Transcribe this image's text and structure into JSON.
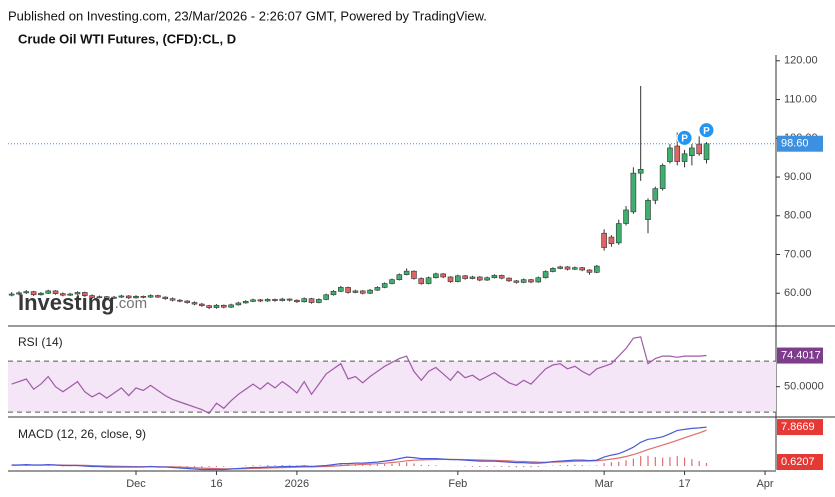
{
  "header": {
    "published": "Published on Investing.com, 23/Mar/2026 - 2:26:07 GMT, Powered by TradingView."
  },
  "watermark": [
    "Investing",
    ".com"
  ],
  "chart_data": [
    {
      "type": "candlestick",
      "title": "Crude Oil WTI Futures, (CFD):CL, D",
      "up_color": "#3fae6f",
      "down_color": "#e26363",
      "xlim": [
        -0.5,
        104.5
      ],
      "ylim": [
        51.8,
        121.5
      ],
      "yticks": [
        {
          "value": 60,
          "label": "60.00"
        },
        {
          "value": 70,
          "label": "70.00"
        },
        {
          "value": 80,
          "label": "80.00"
        },
        {
          "value": 90,
          "label": "90.00"
        },
        {
          "value": 100,
          "label": "100.00"
        },
        {
          "value": 110,
          "label": "110.00"
        },
        {
          "value": 120,
          "label": "120.00"
        }
      ],
      "price_label": "98.60",
      "price_label_color": "#3d8fe0",
      "events": [
        {
          "index": 92,
          "label": "P"
        },
        {
          "index": 95,
          "label": "P"
        }
      ],
      "ohlc": [
        [
          59.5,
          60.3,
          59.2,
          59.8
        ],
        [
          59.8,
          60.5,
          59.5,
          60.1
        ],
        [
          60.1,
          60.8,
          59.8,
          60.4
        ],
        [
          60.4,
          60.6,
          59.3,
          59.6
        ],
        [
          59.6,
          60.3,
          59.4,
          60.0
        ],
        [
          60.0,
          60.9,
          59.8,
          60.6
        ],
        [
          60.6,
          60.8,
          59.6,
          59.9
        ],
        [
          59.9,
          60.2,
          59.2,
          59.5
        ],
        [
          59.5,
          60.1,
          59.3,
          59.8
        ],
        [
          59.8,
          60.5,
          59.6,
          60.2
        ],
        [
          60.2,
          60.4,
          59.1,
          59.4
        ],
        [
          59.4,
          59.7,
          58.6,
          58.9
        ],
        [
          58.9,
          59.4,
          58.7,
          59.1
        ],
        [
          59.1,
          59.3,
          58.4,
          58.7
        ],
        [
          58.7,
          59.3,
          58.5,
          59.0
        ],
        [
          59.0,
          59.6,
          58.8,
          59.3
        ],
        [
          59.3,
          59.5,
          58.5,
          58.8
        ],
        [
          58.8,
          59.5,
          58.6,
          59.2
        ],
        [
          59.2,
          59.4,
          58.7,
          59.0
        ],
        [
          59.0,
          59.7,
          58.8,
          59.4
        ],
        [
          59.4,
          59.6,
          58.8,
          59.0
        ],
        [
          59.0,
          59.2,
          58.3,
          58.6
        ],
        [
          58.6,
          58.9,
          57.9,
          58.2
        ],
        [
          58.2,
          58.5,
          57.7,
          58.0
        ],
        [
          58.0,
          58.2,
          57.3,
          57.6
        ],
        [
          57.6,
          57.9,
          56.9,
          57.2
        ],
        [
          57.2,
          57.5,
          56.5,
          56.8
        ],
        [
          56.8,
          57.0,
          55.9,
          56.3
        ],
        [
          56.3,
          57.2,
          56.0,
          56.9
        ],
        [
          56.9,
          57.1,
          56.1,
          56.4
        ],
        [
          56.4,
          57.3,
          56.2,
          57.0
        ],
        [
          57.0,
          57.8,
          56.8,
          57.5
        ],
        [
          57.5,
          58.2,
          57.3,
          57.9
        ],
        [
          57.9,
          58.6,
          57.7,
          58.3
        ],
        [
          58.3,
          58.5,
          57.7,
          58.0
        ],
        [
          58.0,
          58.7,
          57.8,
          58.4
        ],
        [
          58.4,
          58.6,
          57.8,
          58.1
        ],
        [
          58.1,
          58.8,
          57.9,
          58.5
        ],
        [
          58.5,
          58.7,
          57.9,
          58.2
        ],
        [
          58.2,
          58.4,
          57.5,
          57.8
        ],
        [
          57.8,
          58.9,
          57.6,
          58.6
        ],
        [
          58.6,
          58.8,
          57.3,
          57.6
        ],
        [
          57.6,
          58.7,
          57.4,
          58.4
        ],
        [
          58.4,
          59.9,
          58.2,
          59.6
        ],
        [
          59.6,
          60.8,
          59.4,
          60.5
        ],
        [
          60.5,
          61.9,
          60.3,
          61.5
        ],
        [
          61.5,
          61.7,
          59.9,
          60.2
        ],
        [
          60.2,
          60.9,
          60.0,
          60.6
        ],
        [
          60.6,
          60.8,
          59.7,
          60.0
        ],
        [
          60.0,
          61.1,
          59.8,
          60.8
        ],
        [
          60.8,
          61.8,
          60.6,
          61.5
        ],
        [
          61.5,
          62.8,
          61.3,
          62.5
        ],
        [
          62.5,
          63.8,
          62.3,
          63.5
        ],
        [
          63.5,
          65.1,
          63.3,
          64.8
        ],
        [
          64.8,
          66.4,
          64.6,
          65.7
        ],
        [
          65.7,
          65.9,
          63.5,
          63.8
        ],
        [
          63.8,
          64.1,
          62.2,
          62.5
        ],
        [
          62.5,
          64.3,
          62.3,
          64.0
        ],
        [
          64.0,
          65.3,
          63.8,
          65.0
        ],
        [
          65.0,
          65.2,
          63.9,
          64.2
        ],
        [
          64.2,
          64.4,
          62.7,
          63.0
        ],
        [
          63.0,
          64.8,
          62.8,
          64.5
        ],
        [
          64.5,
          64.7,
          63.5,
          63.8
        ],
        [
          63.8,
          64.5,
          63.6,
          64.2
        ],
        [
          64.2,
          64.4,
          63.1,
          63.4
        ],
        [
          63.4,
          64.3,
          63.2,
          64.0
        ],
        [
          64.0,
          64.9,
          63.8,
          64.6
        ],
        [
          64.6,
          64.8,
          63.6,
          63.9
        ],
        [
          63.9,
          64.1,
          62.9,
          63.2
        ],
        [
          63.2,
          63.4,
          62.5,
          62.8
        ],
        [
          62.8,
          63.8,
          62.6,
          63.5
        ],
        [
          63.5,
          63.7,
          62.6,
          62.9
        ],
        [
          62.9,
          64.3,
          62.7,
          64.0
        ],
        [
          64.0,
          65.9,
          63.8,
          65.6
        ],
        [
          65.6,
          66.7,
          65.4,
          66.4
        ],
        [
          66.4,
          67.1,
          66.2,
          66.8
        ],
        [
          66.8,
          67.0,
          65.9,
          66.2
        ],
        [
          66.2,
          66.9,
          66.0,
          66.6
        ],
        [
          66.6,
          66.8,
          65.7,
          66.0
        ],
        [
          66.0,
          66.2,
          64.8,
          65.4
        ],
        [
          65.4,
          67.3,
          65.2,
          67.0
        ],
        [
          75.5,
          76.5,
          71.0,
          71.8
        ],
        [
          74.5,
          75.0,
          72.0,
          72.8
        ],
        [
          73.0,
          79.0,
          72.5,
          78.0
        ],
        [
          78.0,
          82.5,
          77.5,
          81.5
        ],
        [
          81.0,
          92.5,
          80.5,
          91.0
        ],
        [
          91.0,
          113.5,
          89.0,
          92.0
        ],
        [
          79.0,
          84.5,
          75.5,
          84.0
        ],
        [
          84.0,
          87.5,
          83.0,
          87.0
        ],
        [
          87.0,
          93.5,
          86.5,
          93.0
        ],
        [
          94.0,
          98.5,
          93.5,
          97.5
        ],
        [
          98.0,
          101.5,
          93.0,
          94.0
        ],
        [
          94.0,
          97.0,
          92.5,
          96.0
        ],
        [
          95.5,
          98.5,
          93.0,
          97.5
        ],
        [
          98.5,
          100.5,
          95.5,
          96.0
        ],
        [
          94.5,
          99.0,
          93.5,
          98.6
        ]
      ]
    },
    {
      "type": "rsi",
      "name": "RSI (14)",
      "color": "#a05aa8",
      "band_color": "#f4e6f6",
      "xlim": [
        -0.5,
        104.5
      ],
      "ylim": [
        27,
        96
      ],
      "bands": [
        30,
        70
      ],
      "yticks": [
        {
          "value": 50,
          "label": "50.0000"
        }
      ],
      "value_label": "74.4017",
      "label_color": "#7d3c8c",
      "values": [
        52,
        54,
        56,
        48,
        52,
        58,
        50,
        46,
        50,
        54,
        46,
        42,
        45,
        41,
        45,
        49,
        43,
        49,
        47,
        51,
        47,
        43,
        40,
        38,
        36,
        34,
        32,
        29,
        37,
        33,
        39,
        44,
        48,
        52,
        48,
        53,
        49,
        54,
        50,
        45,
        54,
        44,
        52,
        60,
        64,
        68,
        56,
        58,
        53,
        58,
        62,
        66,
        69,
        72,
        74,
        62,
        55,
        62,
        65,
        60,
        55,
        62,
        57,
        59,
        55,
        58,
        61,
        57,
        53,
        51,
        55,
        52,
        58,
        64,
        67,
        68,
        64,
        66,
        62,
        59,
        64,
        66,
        68,
        74,
        80,
        88,
        89,
        68,
        72,
        74,
        74,
        73,
        74,
        74,
        74,
        74.4017
      ]
    },
    {
      "type": "macd",
      "name": "MACD (12, 26, close, 9)",
      "macd_color": "#4a5ad8",
      "signal_color": "#e06d6d",
      "hist_color": "#e06d6d",
      "xlim": [
        -0.5,
        104.5
      ],
      "ylim": [
        -0.8,
        9.7
      ],
      "macd_label": "7.8669",
      "histogram_label": "0.6207",
      "xticks": [
        {
          "value": 17,
          "label": "Dec"
        },
        {
          "value": 28,
          "label": "16"
        },
        {
          "value": 39,
          "label": "2026"
        },
        {
          "value": 61,
          "label": "Feb"
        },
        {
          "value": 81,
          "label": "Mar"
        },
        {
          "value": 92,
          "label": "17"
        },
        {
          "value": 103,
          "label": "Apr"
        }
      ],
      "macd": [
        0.2,
        0.2,
        0.3,
        0.2,
        0.2,
        0.3,
        0.2,
        0.1,
        0.1,
        0.1,
        0.0,
        -0.1,
        -0.1,
        -0.2,
        -0.2,
        -0.2,
        -0.2,
        -0.2,
        -0.2,
        -0.1,
        -0.2,
        -0.2,
        -0.3,
        -0.4,
        -0.5,
        -0.6,
        -0.7,
        -0.7,
        -0.7,
        -0.7,
        -0.6,
        -0.5,
        -0.4,
        -0.3,
        -0.3,
        -0.2,
        -0.2,
        -0.1,
        -0.1,
        -0.1,
        0.0,
        -0.1,
        0.0,
        0.1,
        0.3,
        0.5,
        0.5,
        0.6,
        0.6,
        0.7,
        0.8,
        1.0,
        1.2,
        1.5,
        1.8,
        1.7,
        1.5,
        1.5,
        1.5,
        1.4,
        1.3,
        1.3,
        1.2,
        1.1,
        1.0,
        1.0,
        1.0,
        0.9,
        0.8,
        0.7,
        0.7,
        0.6,
        0.6,
        0.7,
        0.9,
        1.0,
        1.1,
        1.2,
        1.2,
        1.1,
        1.2,
        1.8,
        2.2,
        2.5,
        3.1,
        3.8,
        4.8,
        5.4,
        5.6,
        5.9,
        6.5,
        7.2,
        7.4,
        7.6,
        7.7,
        7.8669
      ],
      "signal": [
        0.15,
        0.16,
        0.19,
        0.19,
        0.19,
        0.21,
        0.21,
        0.19,
        0.17,
        0.16,
        0.13,
        0.08,
        0.04,
        0.0,
        -0.04,
        -0.07,
        -0.1,
        -0.12,
        -0.14,
        -0.13,
        -0.14,
        -0.15,
        -0.18,
        -0.22,
        -0.28,
        -0.34,
        -0.41,
        -0.47,
        -0.51,
        -0.55,
        -0.56,
        -0.55,
        -0.52,
        -0.48,
        -0.45,
        -0.4,
        -0.36,
        -0.31,
        -0.27,
        -0.24,
        -0.19,
        -0.17,
        -0.14,
        -0.09,
        -0.01,
        0.09,
        0.17,
        0.26,
        0.33,
        0.4,
        0.48,
        0.58,
        0.71,
        0.86,
        1.05,
        1.18,
        1.24,
        1.29,
        1.33,
        1.35,
        1.34,
        1.33,
        1.31,
        1.27,
        1.22,
        1.18,
        1.14,
        1.09,
        1.03,
        0.96,
        0.91,
        0.85,
        0.8,
        0.78,
        0.8,
        0.84,
        0.89,
        0.95,
        1.0,
        1.02,
        1.06,
        1.21,
        1.41,
        1.63,
        1.92,
        2.3,
        2.8,
        3.32,
        3.78,
        4.22,
        4.7,
        5.2,
        5.7,
        6.2,
        6.7,
        7.2462
      ],
      "histogram": [
        0.05,
        0.04,
        0.11,
        0.01,
        0.01,
        0.09,
        -0.01,
        -0.09,
        -0.07,
        -0.06,
        -0.13,
        -0.18,
        -0.14,
        -0.2,
        -0.16,
        -0.13,
        -0.1,
        -0.08,
        -0.06,
        0.03,
        -0.06,
        -0.05,
        -0.12,
        -0.18,
        -0.22,
        -0.26,
        -0.29,
        -0.23,
        -0.19,
        -0.15,
        -0.04,
        0.05,
        0.12,
        0.18,
        0.15,
        0.2,
        0.16,
        0.21,
        0.17,
        0.14,
        0.19,
        0.07,
        0.14,
        0.19,
        0.31,
        0.41,
        0.33,
        0.34,
        0.27,
        0.3,
        0.32,
        0.42,
        0.49,
        0.64,
        0.75,
        0.52,
        0.26,
        0.21,
        0.17,
        0.05,
        -0.04,
        -0.03,
        -0.11,
        -0.17,
        -0.22,
        -0.18,
        -0.14,
        -0.19,
        -0.23,
        -0.26,
        -0.21,
        -0.25,
        -0.2,
        -0.08,
        0.1,
        0.16,
        0.21,
        0.25,
        0.2,
        0.08,
        0.14,
        0.59,
        0.79,
        0.87,
        1.18,
        1.5,
        2.0,
        2.08,
        1.82,
        1.68,
        1.8,
        2.0,
        1.7,
        1.4,
        1.0,
        0.6207
      ]
    }
  ]
}
